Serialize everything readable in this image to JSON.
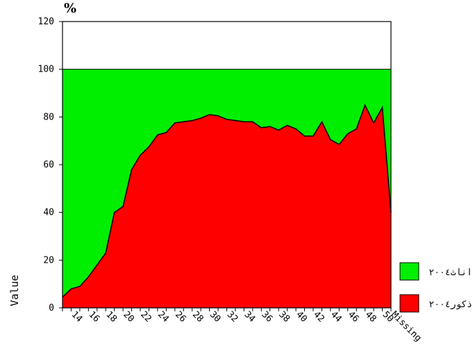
{
  "chart_data": {
    "type": "area",
    "stacked": true,
    "y_unit": "%",
    "ylabel": "Value",
    "xlabel": "",
    "ylim": [
      0,
      120
    ],
    "yticks": [
      0,
      20,
      40,
      60,
      80,
      100,
      120
    ],
    "grid": false,
    "legend_position": "right",
    "x": [
      "13",
      "14",
      "15",
      "16",
      "17",
      "18",
      "19",
      "20",
      "21",
      "22",
      "23",
      "24",
      "25",
      "26",
      "27",
      "28",
      "29",
      "30",
      "31",
      "32",
      "33",
      "34",
      "35",
      "36",
      "37",
      "38",
      "39",
      "40",
      "41",
      "42",
      "43",
      "44",
      "45",
      "46",
      "47",
      "48",
      "49",
      "50",
      "Missing"
    ],
    "x_tick_labels": [
      "14",
      "16",
      "18",
      "20",
      "22",
      "24",
      "26",
      "28",
      "30",
      "32",
      "34",
      "36",
      "38",
      "40",
      "42",
      "44",
      "46",
      "48",
      "50",
      "Missing"
    ],
    "series": [
      {
        "name": "ذكور٢٠٠٤",
        "color": "#ff0000",
        "values": [
          4.5,
          8,
          9,
          13,
          18,
          23,
          40,
          42.5,
          58,
          64,
          67.5,
          72.5,
          73.5,
          77.5,
          78,
          78.5,
          79.5,
          81,
          80.5,
          79,
          78.5,
          78,
          78,
          75.5,
          76,
          74.5,
          76.5,
          75,
          72,
          72,
          78,
          70.5,
          68.5,
          73,
          75,
          85,
          77.5,
          84,
          40
        ]
      },
      {
        "name": "اناث٢٠٠٤",
        "color": "#00ee00",
        "values": [
          95.5,
          92,
          91,
          87,
          82,
          77,
          60,
          57.5,
          42,
          36,
          32.5,
          27.5,
          26.5,
          22.5,
          22,
          21.5,
          20.5,
          19,
          19.5,
          21,
          21.5,
          22,
          22,
          24.5,
          24,
          25.5,
          23.5,
          25,
          28,
          28,
          22,
          29.5,
          31.5,
          27,
          25,
          15,
          22.5,
          16,
          60
        ]
      }
    ]
  }
}
